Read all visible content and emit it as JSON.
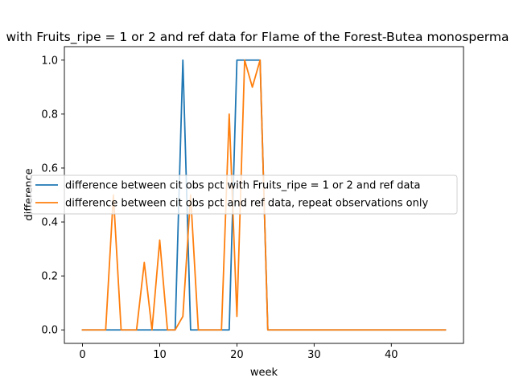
{
  "chart_data": {
    "type": "line",
    "title": "with Fruits_ripe = 1 or 2 and ref data for Flame of the Forest-Butea monosperma",
    "xlabel": "week",
    "ylabel": "difference",
    "xlim": [
      -2.35,
      49.35
    ],
    "ylim": [
      -0.05,
      1.05
    ],
    "xticks": [
      0,
      10,
      20,
      30,
      40
    ],
    "yticks": [
      0.0,
      0.2,
      0.4,
      0.6,
      0.8,
      1.0
    ],
    "xtick_labels": [
      "0",
      "10",
      "20",
      "30",
      "40"
    ],
    "ytick_labels": [
      "0.0",
      "0.2",
      "0.4",
      "0.6",
      "0.8",
      "1.0"
    ],
    "grid": false,
    "legend_position": "center",
    "series": [
      {
        "name": "difference between cit obs pct with Fruits_ripe = 1 or 2 and ref data",
        "color": "#1f77b4",
        "x": [
          0,
          1,
          2,
          3,
          4,
          5,
          6,
          7,
          8,
          9,
          10,
          11,
          12,
          13,
          14,
          15,
          16,
          17,
          18,
          19,
          20,
          21,
          22,
          23,
          24,
          25,
          26,
          27,
          28,
          29,
          30,
          31,
          32,
          33,
          34,
          35,
          36,
          37,
          38,
          39,
          40,
          41,
          42,
          43,
          44,
          45,
          46,
          47
        ],
        "y": [
          0,
          0,
          0,
          0,
          0,
          0,
          0,
          0,
          0,
          0,
          0,
          0,
          0,
          1,
          0,
          0,
          0,
          0,
          0,
          0,
          1,
          1,
          1,
          1,
          0,
          0,
          0,
          0,
          0,
          0,
          0,
          0,
          0,
          0,
          0,
          0,
          0,
          0,
          0,
          0,
          0,
          0,
          0,
          0,
          0,
          0,
          0,
          0
        ]
      },
      {
        "name": "difference between cit obs pct and ref data, repeat observations only",
        "color": "#ff7f0e",
        "x": [
          0,
          1,
          2,
          3,
          4,
          5,
          6,
          7,
          8,
          9,
          10,
          11,
          12,
          13,
          14,
          15,
          16,
          17,
          18,
          19,
          20,
          21,
          22,
          23,
          24,
          25,
          26,
          27,
          28,
          29,
          30,
          31,
          32,
          33,
          34,
          35,
          36,
          37,
          38,
          39,
          40,
          41,
          42,
          43,
          44,
          45,
          46,
          47
        ],
        "y": [
          0,
          0,
          0,
          0,
          0.5,
          0,
          0,
          0,
          0.25,
          0,
          0.333,
          0,
          0,
          0.05,
          0.5,
          0,
          0,
          0,
          0,
          0.8,
          0.05,
          1,
          0.9,
          1,
          0,
          0,
          0,
          0,
          0,
          0,
          0,
          0,
          0,
          0,
          0,
          0,
          0,
          0,
          0,
          0,
          0,
          0,
          0,
          0,
          0,
          0,
          0,
          0
        ]
      }
    ]
  }
}
